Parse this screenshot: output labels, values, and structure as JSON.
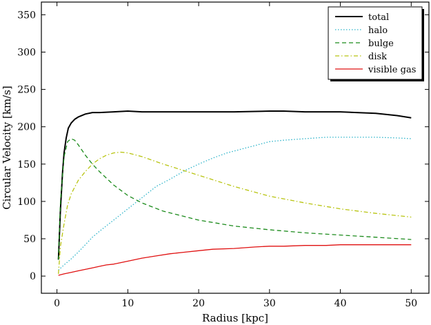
{
  "chart_data": {
    "type": "line",
    "title": "",
    "xlabel": "Radius [kpc]",
    "ylabel": "Circular Velocity [km/s]",
    "xlim": [
      -2.2,
      52.5
    ],
    "ylim": [
      -23,
      367
    ],
    "xticks": [
      0,
      10,
      20,
      30,
      40,
      50
    ],
    "yticks": [
      0,
      50,
      100,
      150,
      200,
      250,
      300,
      350
    ],
    "grid": false,
    "legend_position": "top-right",
    "series": [
      {
        "name": "total",
        "color": "#000000",
        "dash": "solid",
        "x": [
          0.2,
          0.5,
          0.8,
          1.0,
          1.3,
          1.6,
          2.0,
          2.5,
          3.0,
          4.0,
          5.0,
          6.0,
          8.0,
          10.0,
          12.0,
          15.0,
          20.0,
          25.0,
          30.0,
          32.0,
          35.0,
          40.0,
          45.0,
          48.0,
          50.0
        ],
        "y": [
          22,
          90,
          140,
          165,
          185,
          198,
          205,
          210,
          213,
          217,
          219,
          219,
          220,
          221,
          220,
          220,
          220,
          220,
          221,
          221,
          220,
          220,
          218,
          215,
          212
        ]
      },
      {
        "name": "halo",
        "color": "#2ab3c9",
        "dash": "dotted",
        "x": [
          0.2,
          1.0,
          2.0,
          3.0,
          4.0,
          5.0,
          6.0,
          8.0,
          10.0,
          12.0,
          14.0,
          16.0,
          18.0,
          20.0,
          22.0,
          24.0,
          26.0,
          28.0,
          30.0,
          32.0,
          35.0,
          38.0,
          40.0,
          42.0,
          45.0,
          48.0,
          50.0
        ],
        "y": [
          8,
          15,
          23,
          32,
          42,
          52,
          60,
          75,
          90,
          105,
          120,
          130,
          141,
          150,
          158,
          165,
          170,
          175,
          180,
          182,
          184,
          186,
          186,
          186,
          186,
          185,
          184
        ]
      },
      {
        "name": "bulge",
        "color": "#1a8a1a",
        "dash": "dashed",
        "x": [
          0.2,
          0.5,
          1.0,
          1.5,
          2.0,
          2.5,
          3.0,
          4.0,
          5.0,
          6.0,
          8.0,
          10.0,
          12.0,
          15.0,
          20.0,
          25.0,
          30.0,
          35.0,
          40.0,
          45.0,
          50.0
        ],
        "y": [
          22,
          100,
          160,
          180,
          184,
          182,
          176,
          162,
          150,
          140,
          122,
          108,
          98,
          87,
          75,
          67,
          62,
          58,
          55,
          52,
          49
        ]
      },
      {
        "name": "disk",
        "color": "#b8c410",
        "dash": "dashdot",
        "x": [
          0.2,
          0.5,
          1.0,
          1.5,
          2.0,
          3.0,
          4.0,
          5.0,
          6.0,
          7.0,
          8.0,
          9.0,
          10.0,
          12.0,
          15.0,
          20.0,
          25.0,
          30.0,
          35.0,
          40.0,
          45.0,
          50.0
        ],
        "y": [
          3,
          40,
          70,
          95,
          110,
          128,
          140,
          150,
          157,
          162,
          165,
          166,
          165,
          160,
          150,
          135,
          120,
          107,
          98,
          90,
          84,
          79
        ]
      },
      {
        "name": "visible gas",
        "color": "#e01010",
        "dash": "solid",
        "x": [
          0.2,
          1.0,
          2.0,
          3.0,
          4.0,
          5.0,
          6.0,
          7.0,
          8.0,
          9.0,
          10.0,
          12.0,
          14.0,
          16.0,
          18.0,
          20.0,
          22.0,
          25.0,
          28.0,
          30.0,
          32.0,
          35.0,
          38.0,
          40.0,
          42.0,
          45.0,
          48.0,
          50.0
        ],
        "y": [
          1,
          3,
          5,
          7,
          9,
          11,
          13,
          15,
          16,
          18,
          20,
          24,
          27,
          30,
          32,
          34,
          36,
          37,
          39,
          40,
          40,
          41,
          41,
          42,
          42,
          42,
          42,
          42
        ]
      }
    ]
  }
}
